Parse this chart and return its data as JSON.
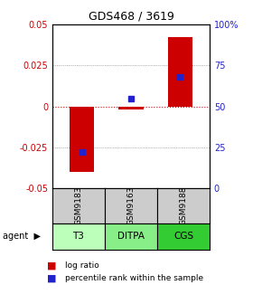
{
  "title": "GDS468 / 3619",
  "samples": [
    "GSM9183",
    "GSM9163",
    "GSM9188"
  ],
  "agents": [
    "T3",
    "DITPA",
    "CGS"
  ],
  "log_ratios": [
    -0.04,
    -0.002,
    0.042
  ],
  "percentile_ranks": [
    22,
    55,
    68
  ],
  "ylim_left": [
    -0.05,
    0.05
  ],
  "ylim_right": [
    0,
    100
  ],
  "yticks_left": [
    -0.05,
    -0.025,
    0,
    0.025,
    0.05
  ],
  "yticks_right": [
    0,
    25,
    50,
    75,
    100
  ],
  "bar_color": "#cc0000",
  "dot_color": "#2222cc",
  "agent_colors": [
    "#bbffbb",
    "#88ee88",
    "#33cc33"
  ],
  "sample_color": "#cccccc",
  "zero_line_color": "#cc0000",
  "grid_color": "#888888",
  "bar_width": 0.5,
  "title_fontsize": 9,
  "tick_fontsize": 7,
  "label_fontsize": 7,
  "legend_fontsize": 6.5
}
